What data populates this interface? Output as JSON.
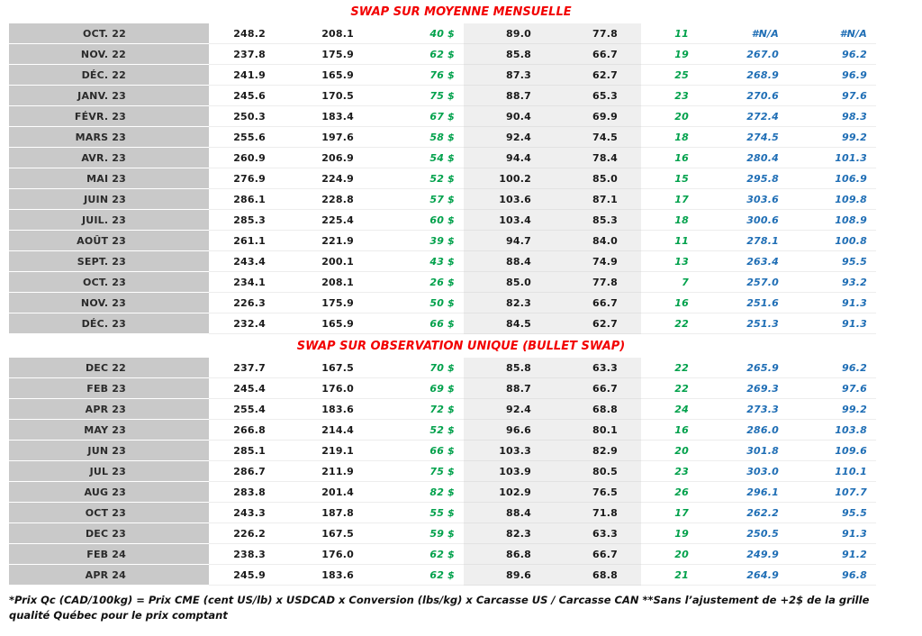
{
  "colors": {
    "title_red": "#f20000",
    "accent_green": "#00a14b",
    "accent_blue": "#1f6eb5",
    "month_gray": "#c9c9c9",
    "band_gray": "#efefef"
  },
  "sections": [
    {
      "title": "SWAP SUR MOYENNE MENSUELLE",
      "rows": [
        {
          "month": "OCT. 22",
          "values": [
            "248.2",
            "208.1",
            "40 $",
            "89.0",
            "77.8",
            "11",
            "#N/A",
            "#N/A"
          ]
        },
        {
          "month": "NOV. 22",
          "values": [
            "237.8",
            "175.9",
            "62 $",
            "85.8",
            "66.7",
            "19",
            "267.0",
            "96.2"
          ]
        },
        {
          "month": "DÉC. 22",
          "values": [
            "241.9",
            "165.9",
            "76 $",
            "87.3",
            "62.7",
            "25",
            "268.9",
            "96.9"
          ]
        },
        {
          "month": "JANV. 23",
          "values": [
            "245.6",
            "170.5",
            "75 $",
            "88.7",
            "65.3",
            "23",
            "270.6",
            "97.6"
          ]
        },
        {
          "month": "FÉVR. 23",
          "values": [
            "250.3",
            "183.4",
            "67 $",
            "90.4",
            "69.9",
            "20",
            "272.4",
            "98.3"
          ]
        },
        {
          "month": "MARS 23",
          "values": [
            "255.6",
            "197.6",
            "58 $",
            "92.4",
            "74.5",
            "18",
            "274.5",
            "99.2"
          ]
        },
        {
          "month": "AVR. 23",
          "values": [
            "260.9",
            "206.9",
            "54 $",
            "94.4",
            "78.4",
            "16",
            "280.4",
            "101.3"
          ]
        },
        {
          "month": "MAI 23",
          "values": [
            "276.9",
            "224.9",
            "52 $",
            "100.2",
            "85.0",
            "15",
            "295.8",
            "106.9"
          ]
        },
        {
          "month": "JUIN 23",
          "values": [
            "286.1",
            "228.8",
            "57 $",
            "103.6",
            "87.1",
            "17",
            "303.6",
            "109.8"
          ]
        },
        {
          "month": "JUIL. 23",
          "values": [
            "285.3",
            "225.4",
            "60 $",
            "103.4",
            "85.3",
            "18",
            "300.6",
            "108.9"
          ]
        },
        {
          "month": "AOÛT 23",
          "values": [
            "261.1",
            "221.9",
            "39 $",
            "94.7",
            "84.0",
            "11",
            "278.1",
            "100.8"
          ]
        },
        {
          "month": "SEPT. 23",
          "values": [
            "243.4",
            "200.1",
            "43 $",
            "88.4",
            "74.9",
            "13",
            "263.4",
            "95.5"
          ]
        },
        {
          "month": "OCT. 23",
          "values": [
            "234.1",
            "208.1",
            "26 $",
            "85.0",
            "77.8",
            "7",
            "257.0",
            "93.2"
          ]
        },
        {
          "month": "NOV. 23",
          "values": [
            "226.3",
            "175.9",
            "50 $",
            "82.3",
            "66.7",
            "16",
            "251.6",
            "91.3"
          ]
        },
        {
          "month": "DÉC. 23",
          "values": [
            "232.4",
            "165.9",
            "66 $",
            "84.5",
            "62.7",
            "22",
            "251.3",
            "91.3"
          ]
        }
      ]
    },
    {
      "title": "SWAP SUR OBSERVATION UNIQUE (BULLET SWAP)",
      "rows": [
        {
          "month": "DEC 22",
          "values": [
            "237.7",
            "167.5",
            "70 $",
            "85.8",
            "63.3",
            "22",
            "265.9",
            "96.2"
          ]
        },
        {
          "month": "FEB 23",
          "values": [
            "245.4",
            "176.0",
            "69 $",
            "88.7",
            "66.7",
            "22",
            "269.3",
            "97.6"
          ]
        },
        {
          "month": "APR 23",
          "values": [
            "255.4",
            "183.6",
            "72 $",
            "92.4",
            "68.8",
            "24",
            "273.3",
            "99.2"
          ]
        },
        {
          "month": "MAY 23",
          "values": [
            "266.8",
            "214.4",
            "52 $",
            "96.6",
            "80.1",
            "16",
            "286.0",
            "103.8"
          ]
        },
        {
          "month": "JUN 23",
          "values": [
            "285.1",
            "219.1",
            "66 $",
            "103.3",
            "82.9",
            "20",
            "301.8",
            "109.6"
          ]
        },
        {
          "month": "JUL 23",
          "values": [
            "286.7",
            "211.9",
            "75 $",
            "103.9",
            "80.5",
            "23",
            "303.0",
            "110.1"
          ]
        },
        {
          "month": "AUG 23",
          "values": [
            "283.8",
            "201.4",
            "82 $",
            "102.9",
            "76.5",
            "26",
            "296.1",
            "107.7"
          ]
        },
        {
          "month": "OCT 23",
          "values": [
            "243.3",
            "187.8",
            "55 $",
            "88.4",
            "71.8",
            "17",
            "262.2",
            "95.5"
          ]
        },
        {
          "month": "DEC 23",
          "values": [
            "226.2",
            "167.5",
            "59 $",
            "82.3",
            "63.3",
            "19",
            "250.5",
            "91.3"
          ]
        },
        {
          "month": "FEB 24",
          "values": [
            "238.3",
            "176.0",
            "62 $",
            "86.8",
            "66.7",
            "20",
            "249.9",
            "91.2"
          ]
        },
        {
          "month": "APR 24",
          "values": [
            "245.9",
            "183.6",
            "62 $",
            "89.6",
            "68.8",
            "21",
            "264.9",
            "96.8"
          ]
        }
      ]
    }
  ],
  "footnote": "*Prix Qc (CAD/100kg) = Prix CME (cent US/lb) x USDCAD x Conversion (lbs/kg) x Carcasse US / Carcasse CAN **Sans l’ajustement de +2$ de la grille qualité Québec pour le prix comptant"
}
